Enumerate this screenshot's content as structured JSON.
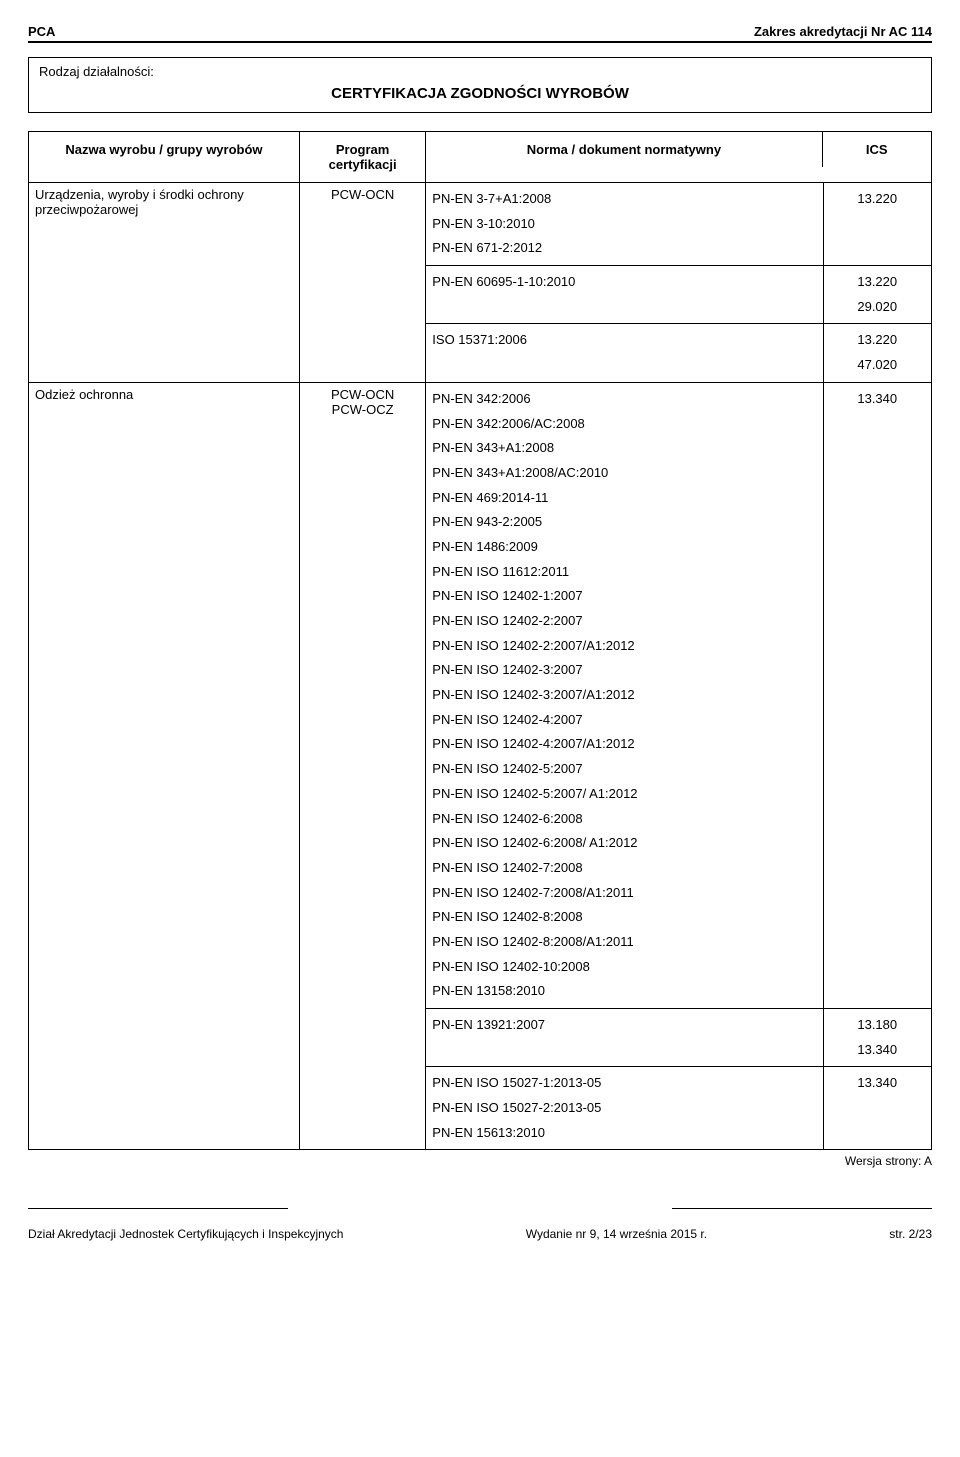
{
  "header": {
    "left": "PCA",
    "right": "Zakres akredytacji Nr AC 114"
  },
  "activity": {
    "label": "Rodzaj działalności:",
    "title": "CERTYFIKACJA ZGODNOŚCI WYROBÓW"
  },
  "table": {
    "headers": {
      "name": "Nazwa wyrobu / grupy wyrobów",
      "program": "Program certyfikacji",
      "norm": "Norma / dokument normatywny",
      "ics": "ICS"
    },
    "rows": [
      {
        "name": "Urządzenia, wyroby i środki ochrony przeciwpożarowej",
        "program": "PCW-OCN",
        "blocks": [
          {
            "norms": [
              "PN-EN 3-7+A1:2008",
              "PN-EN 3-10:2010",
              "PN-EN 671-2:2012"
            ],
            "ics": [
              "13.220"
            ]
          },
          {
            "norms": [
              "PN-EN 60695-1-10:2010"
            ],
            "ics": [
              "13.220",
              "29.020"
            ]
          },
          {
            "norms": [
              "ISO 15371:2006"
            ],
            "ics": [
              "13.220",
              "47.020"
            ]
          }
        ]
      },
      {
        "name": "Odzież ochronna",
        "program": "PCW-OCN\nPCW-OCZ",
        "blocks": [
          {
            "norms": [
              "PN-EN 342:2006",
              "PN-EN 342:2006/AC:2008",
              "PN-EN 343+A1:2008",
              "PN-EN 343+A1:2008/AC:2010",
              "PN-EN 469:2014-11",
              "PN-EN 943-2:2005",
              "PN-EN 1486:2009",
              "PN-EN ISO 11612:2011",
              "PN-EN ISO 12402-1:2007",
              "PN-EN ISO 12402-2:2007",
              "PN-EN ISO 12402-2:2007/A1:2012",
              "PN-EN ISO 12402-3:2007",
              "PN-EN ISO 12402-3:2007/A1:2012",
              "PN-EN ISO 12402-4:2007",
              "PN-EN ISO 12402-4:2007/A1:2012",
              "PN-EN ISO 12402-5:2007",
              "PN-EN ISO 12402-5:2007/ A1:2012",
              "PN-EN ISO 12402-6:2008",
              "PN-EN ISO 12402-6:2008/ A1:2012",
              "PN-EN ISO 12402-7:2008",
              "PN-EN ISO 12402-7:2008/A1:2011",
              "PN-EN ISO 12402-8:2008",
              "PN-EN ISO 12402-8:2008/A1:2011",
              "PN-EN ISO 12402-10:2008",
              "PN-EN 13158:2010"
            ],
            "ics": [
              "13.340"
            ]
          },
          {
            "norms": [
              "PN-EN 13921:2007"
            ],
            "ics": [
              "13.180",
              "13.340"
            ]
          },
          {
            "norms": [
              "PN-EN ISO 15027-1:2013-05",
              "PN-EN ISO 15027-2:2013-05",
              "PN-EN 15613:2010"
            ],
            "ics": [
              "13.340"
            ]
          }
        ]
      }
    ]
  },
  "version": "Wersja strony: A",
  "footer": {
    "left": "Dział Akredytacji Jednostek Certyfikujących i Inspekcyjnych",
    "center": "Wydanie nr 9, 14 września 2015 r.",
    "right": "str. 2/23"
  }
}
